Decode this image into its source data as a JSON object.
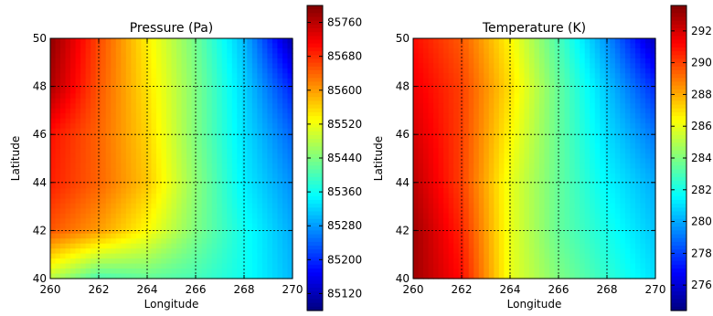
{
  "chart_data": [
    {
      "type": "heatmap",
      "title": "Pressure (Pa)",
      "xlabel": "Longitude",
      "ylabel": "Latitude",
      "xlim": [
        260,
        270
      ],
      "ylim": [
        40,
        50
      ],
      "xticks": [
        260,
        262,
        264,
        266,
        268,
        270
      ],
      "yticks": [
        40,
        42,
        44,
        46,
        48,
        50
      ],
      "grid": true,
      "colormap": "jet",
      "colorbar": {
        "min": 85080,
        "max": 85800,
        "ticks": [
          85120,
          85200,
          85280,
          85360,
          85440,
          85520,
          85600,
          85680,
          85760
        ]
      },
      "x": [
        260,
        262,
        264,
        266,
        268,
        270
      ],
      "y": [
        50,
        48,
        46,
        44,
        42,
        40
      ],
      "z": [
        [
          85790,
          85660,
          85540,
          85430,
          85300,
          85110
        ],
        [
          85770,
          85650,
          85550,
          85440,
          85320,
          85190
        ],
        [
          85700,
          85640,
          85560,
          85440,
          85330,
          85240
        ],
        [
          85690,
          85640,
          85570,
          85450,
          85340,
          85270
        ],
        [
          85650,
          85600,
          85530,
          85440,
          85360,
          85290
        ],
        [
          85480,
          85400,
          85420,
          85400,
          85360,
          85300
        ]
      ]
    },
    {
      "type": "heatmap",
      "title": "Temperature (K)",
      "xlabel": "Longitude",
      "ylabel": "Latitude",
      "xlim": [
        260,
        270
      ],
      "ylim": [
        40,
        50
      ],
      "xticks": [
        260,
        262,
        264,
        266,
        268,
        270
      ],
      "yticks": [
        40,
        42,
        44,
        46,
        48,
        50
      ],
      "grid": true,
      "colormap": "jet",
      "colorbar": {
        "min": 274.4,
        "max": 293.6,
        "ticks": [
          276,
          278,
          280,
          282,
          284,
          286,
          288,
          290,
          292
        ]
      },
      "x": [
        260,
        262,
        264,
        266,
        268,
        270
      ],
      "y": [
        50,
        48,
        46,
        44,
        42,
        40
      ],
      "z": [
        [
          291.0,
          289.5,
          286.5,
          283.0,
          279.5,
          275.5
        ],
        [
          291.5,
          290.0,
          287.0,
          283.5,
          280.5,
          277.5
        ],
        [
          292.0,
          290.0,
          286.5,
          283.5,
          281.0,
          279.0
        ],
        [
          292.5,
          290.0,
          286.0,
          283.5,
          281.5,
          280.0
        ],
        [
          293.0,
          290.5,
          286.0,
          283.5,
          282.0,
          280.5
        ],
        [
          293.0,
          291.0,
          286.0,
          284.0,
          282.5,
          281.0
        ]
      ]
    }
  ]
}
